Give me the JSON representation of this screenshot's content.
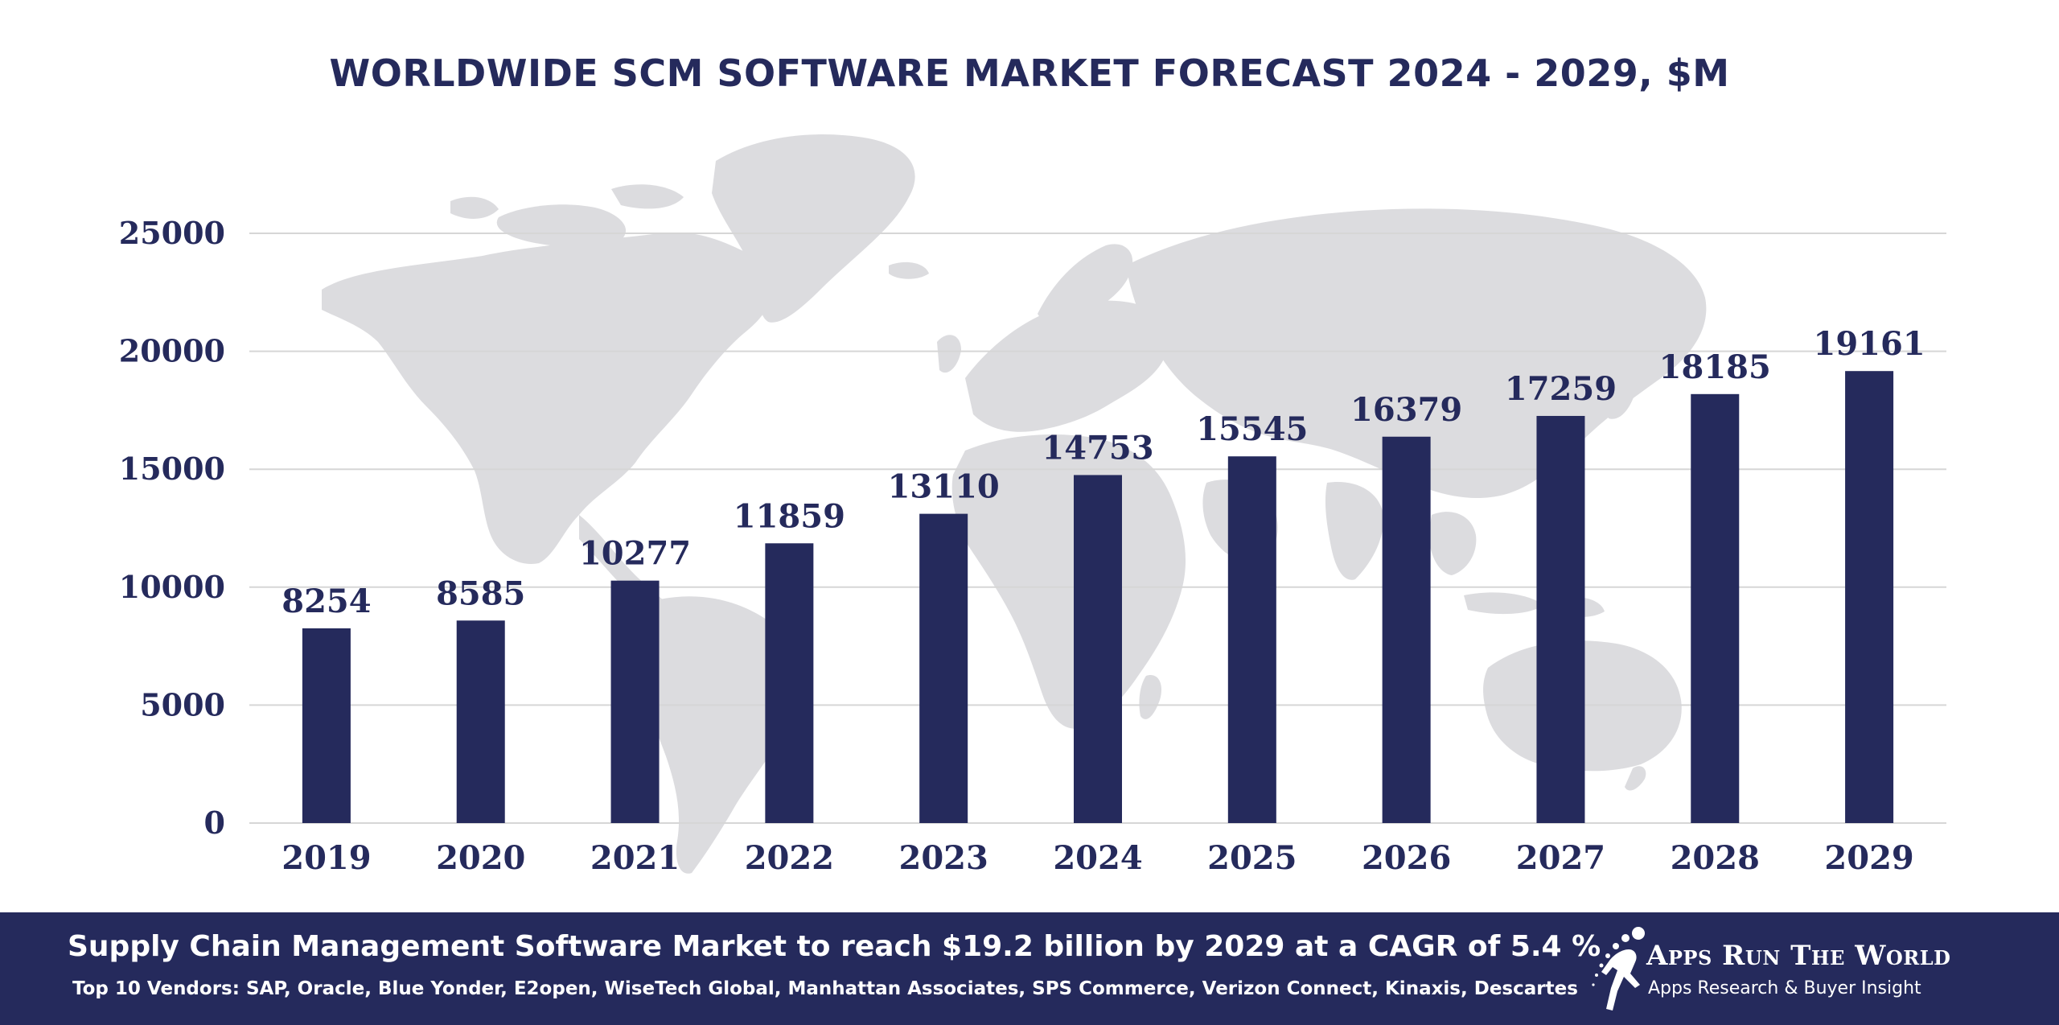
{
  "chart_data": {
    "type": "bar",
    "title": "WORLDWIDE SCM SOFTWARE MARKET FORECAST 2024 - 2029, $M",
    "categories": [
      "2019",
      "2020",
      "2021",
      "2022",
      "2023",
      "2024",
      "2025",
      "2026",
      "2027",
      "2028",
      "2029"
    ],
    "values": [
      8254,
      8585,
      10277,
      11859,
      13110,
      14753,
      15545,
      16379,
      17259,
      18185,
      19161
    ],
    "data_labels": [
      "8254",
      "8585",
      "10277",
      "11859",
      "13110",
      "14753",
      "15545",
      "16379",
      "17259",
      "18185",
      "19161"
    ],
    "y_ticks": [
      0,
      5000,
      10000,
      15000,
      20000,
      25000
    ],
    "y_tick_labels": [
      "0",
      "5000",
      "10000",
      "15000",
      "20000",
      "25000"
    ],
    "ylim": [
      0,
      25000
    ],
    "xlabel": "",
    "ylabel": "",
    "grid": true,
    "bar_color": "#252a5c",
    "background": "world-map-silhouette"
  },
  "footer": {
    "headline": "Supply Chain Management Software Market to reach $19.2 billion by 2029 at a CAGR of 5.4 %",
    "vendors": "Top 10 Vendors: SAP, Oracle, Blue Yonder, E2open, WiseTech Global, Manhattan Associates, SPS Commerce, Verizon Connect, Kinaxis, Descartes",
    "background_color": "#252a5c"
  },
  "brand": {
    "name": "Apps Run The World",
    "tagline": "Apps Research & Buyer Insight",
    "icon": "runner-logo-icon"
  },
  "colors": {
    "primary": "#252a5c",
    "map": "#dcdcdf",
    "grid": "#d6d6d6"
  }
}
